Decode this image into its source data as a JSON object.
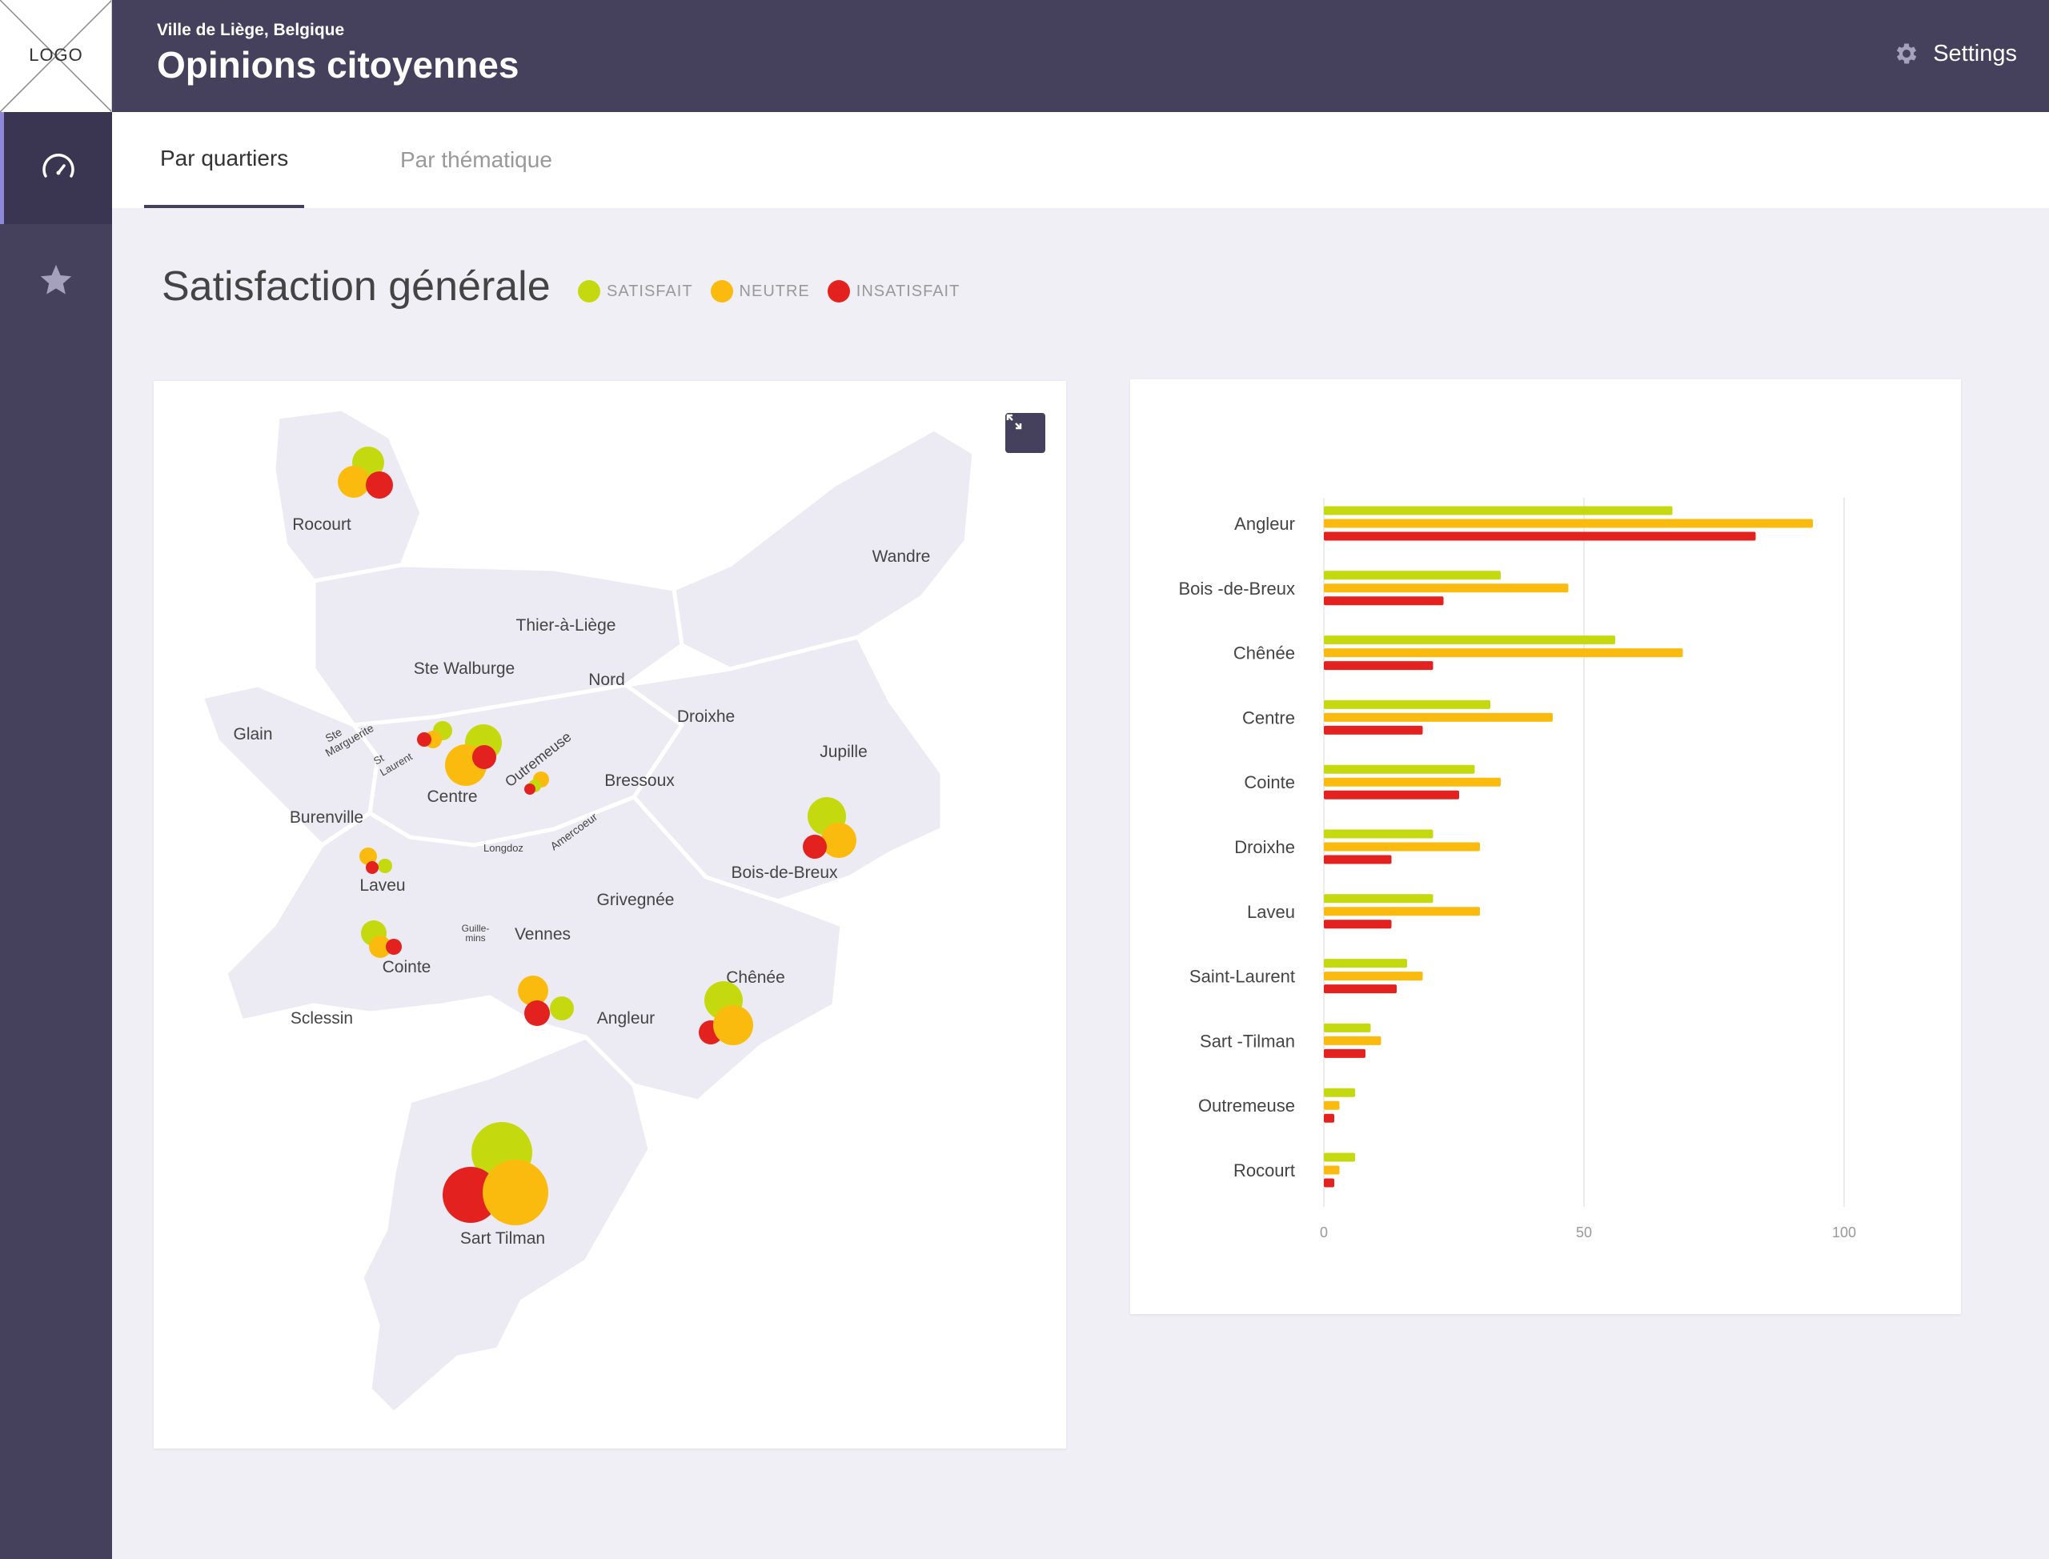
{
  "header": {
    "logo": "LOGO",
    "subtitle": "Ville de Liège, Belgique",
    "title": "Opinions citoyennes",
    "settings_label": "Settings",
    "settings_icon": "gear-icon"
  },
  "sidebar": {
    "items": [
      {
        "icon": "dashboard-gauge-icon",
        "active": true
      },
      {
        "icon": "star-icon",
        "active": false
      }
    ]
  },
  "tabs": [
    {
      "label": "Par quartiers",
      "active": true
    },
    {
      "label": "Par thématique",
      "active": false
    }
  ],
  "section": {
    "title": "Satisfaction générale",
    "legend": [
      {
        "label": "SATISFAIT",
        "color": "#c5d90f"
      },
      {
        "label": "NEUTRE",
        "color": "#fbbb0e"
      },
      {
        "label": "INSATISFAIT",
        "color": "#e3221f"
      }
    ]
  },
  "map": {
    "expand_icon": "expand-icon",
    "labels": {
      "rocourt": "Rocourt",
      "wandre": "Wandre",
      "thier": "Thier-à-Liège",
      "ste_walburge": "Ste Walburge",
      "nord": "Nord",
      "droixhe": "Droixhe",
      "glain": "Glain",
      "ste": "Ste",
      "marguerite": "Marguerite",
      "st": "St",
      "laurent": "Laurent",
      "centre": "Centre",
      "outremeuse": "Outremeuse",
      "bressoux": "Bressoux",
      "jupille": "Jupille",
      "burenville": "Burenville",
      "longdoz": "Longdoz",
      "amercoeur": "Amercoeur",
      "bois_de_breux": "Bois-de-Breux",
      "laveu": "Laveu",
      "grivegnee": "Grivegnée",
      "guille": "Guille-",
      "mins": "mins",
      "vennes": "Vennes",
      "cointe": "Cointe",
      "chenee": "Chênée",
      "sclessin": "Sclessin",
      "angleur": "Angleur",
      "sart_tilman": "Sart Tilman"
    }
  },
  "chart_data": {
    "type": "bar",
    "orientation": "horizontal",
    "categories": [
      "Angleur",
      "Bois -de-Breux",
      "Chênée",
      "Centre",
      "Cointe",
      "Droixhe",
      "Laveu",
      "Saint-Laurent",
      "Sart -Tilman",
      "Outremeuse",
      "Rocourt"
    ],
    "series": [
      {
        "name": "SATISFAIT",
        "color": "#c5d90f",
        "values": [
          67,
          34,
          56,
          32,
          29,
          21,
          21,
          16,
          9,
          6,
          6
        ]
      },
      {
        "name": "NEUTRE",
        "color": "#fbbb0e",
        "values": [
          94,
          47,
          69,
          44,
          34,
          30,
          30,
          19,
          11,
          3,
          3
        ]
      },
      {
        "name": "INSATISFAIT",
        "color": "#e3221f",
        "values": [
          83,
          23,
          21,
          19,
          26,
          13,
          13,
          14,
          8,
          2,
          2
        ]
      }
    ],
    "xlim": [
      0,
      100
    ],
    "xticks": [
      "0",
      "50",
      "100"
    ],
    "grid": true
  }
}
